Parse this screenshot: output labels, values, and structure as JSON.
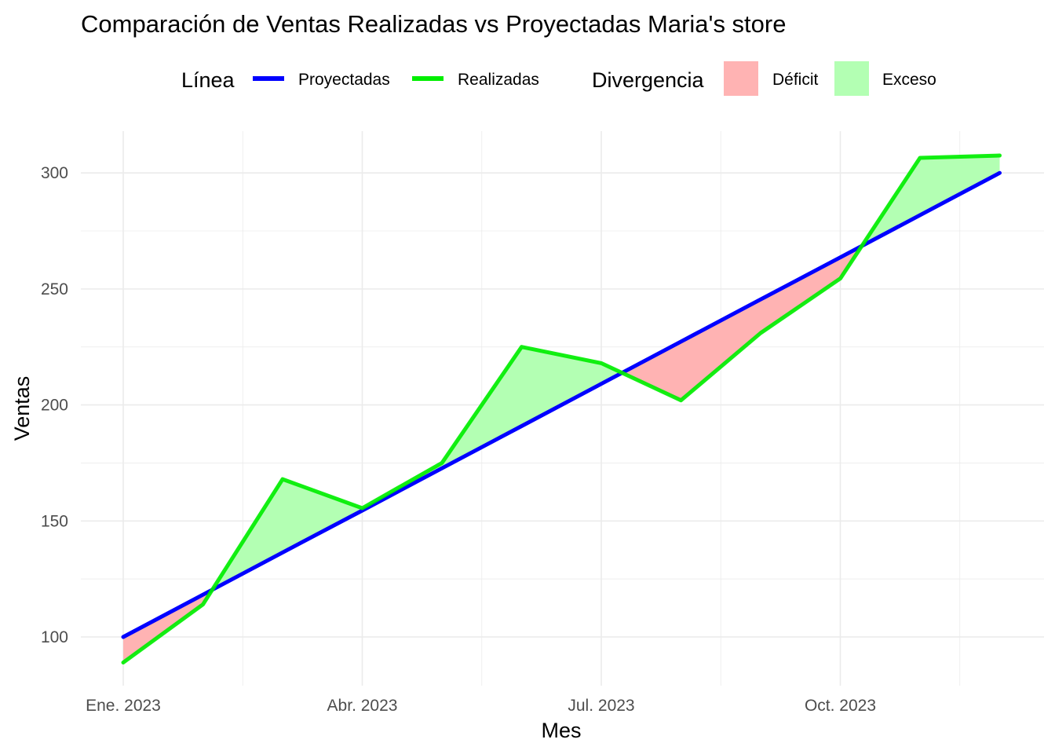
{
  "chart_data": {
    "type": "line",
    "title": "Comparación de Ventas Realizadas vs Proyectadas Maria's store",
    "xlabel": "Mes",
    "ylabel": "Ventas",
    "x": [
      "2023-01",
      "2023-02",
      "2023-03",
      "2023-04",
      "2023-05",
      "2023-06",
      "2023-07",
      "2023-08",
      "2023-09",
      "2023-10",
      "2023-11",
      "2023-12"
    ],
    "x_tick_labels": [
      "Ene. 2023",
      "Abr. 2023",
      "Jul. 2023",
      "Oct. 2023"
    ],
    "y_ticks": [
      100,
      150,
      200,
      250,
      300
    ],
    "ylim": [
      79,
      318
    ],
    "grid": true,
    "legend_position": "top",
    "series": [
      {
        "name": "Proyectadas",
        "color": "#0000ff",
        "values": [
          100,
          118.2,
          136.4,
          154.5,
          172.7,
          190.9,
          209.1,
          227.3,
          245.5,
          263.6,
          281.8,
          300
        ]
      },
      {
        "name": "Realizadas",
        "color": "#00ee00",
        "values": [
          89,
          114,
          168,
          155.5,
          175,
          225,
          218,
          202,
          231,
          254.5,
          306.5,
          307.5
        ]
      }
    ],
    "divergence": {
      "title": "Divergencia",
      "items": [
        {
          "label": "Déficit",
          "color": "#ffb3b3"
        },
        {
          "label": "Exceso",
          "color": "#b3ffb3"
        }
      ]
    },
    "line_legend_title": "Línea"
  }
}
